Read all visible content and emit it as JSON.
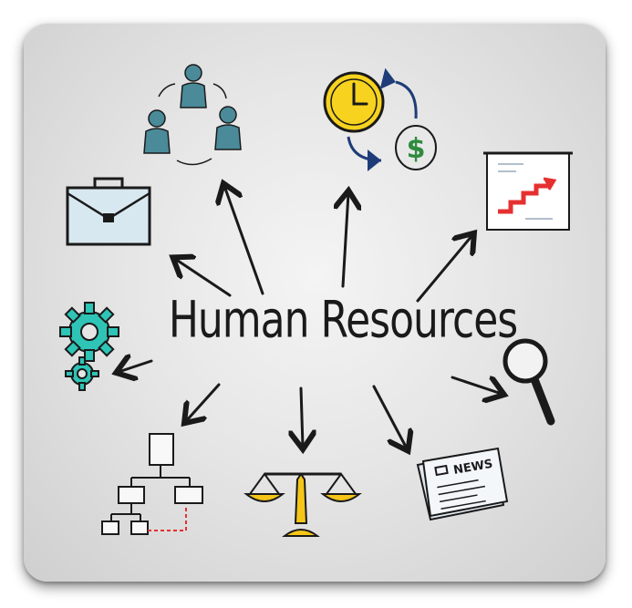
{
  "diagram": {
    "title": "Human Resources",
    "newspaper_label": "NEWS",
    "icons": [
      "team-icon",
      "money-cycle-icon",
      "growth-chart-icon",
      "briefcase-icon",
      "gears-icon",
      "magnifier-icon",
      "org-chart-icon",
      "scales-icon",
      "newspaper-icon"
    ],
    "colors": {
      "teal": "#4a8a99",
      "gear_teal": "#2ec4b6",
      "clock_yellow": "#f7d21e",
      "dollar_green": "#2e8b3d",
      "navy_arrow": "#1e3c78",
      "chart_red": "#e53030",
      "scale_yellow": "#f5c518",
      "ink": "#1a1a1a"
    }
  }
}
